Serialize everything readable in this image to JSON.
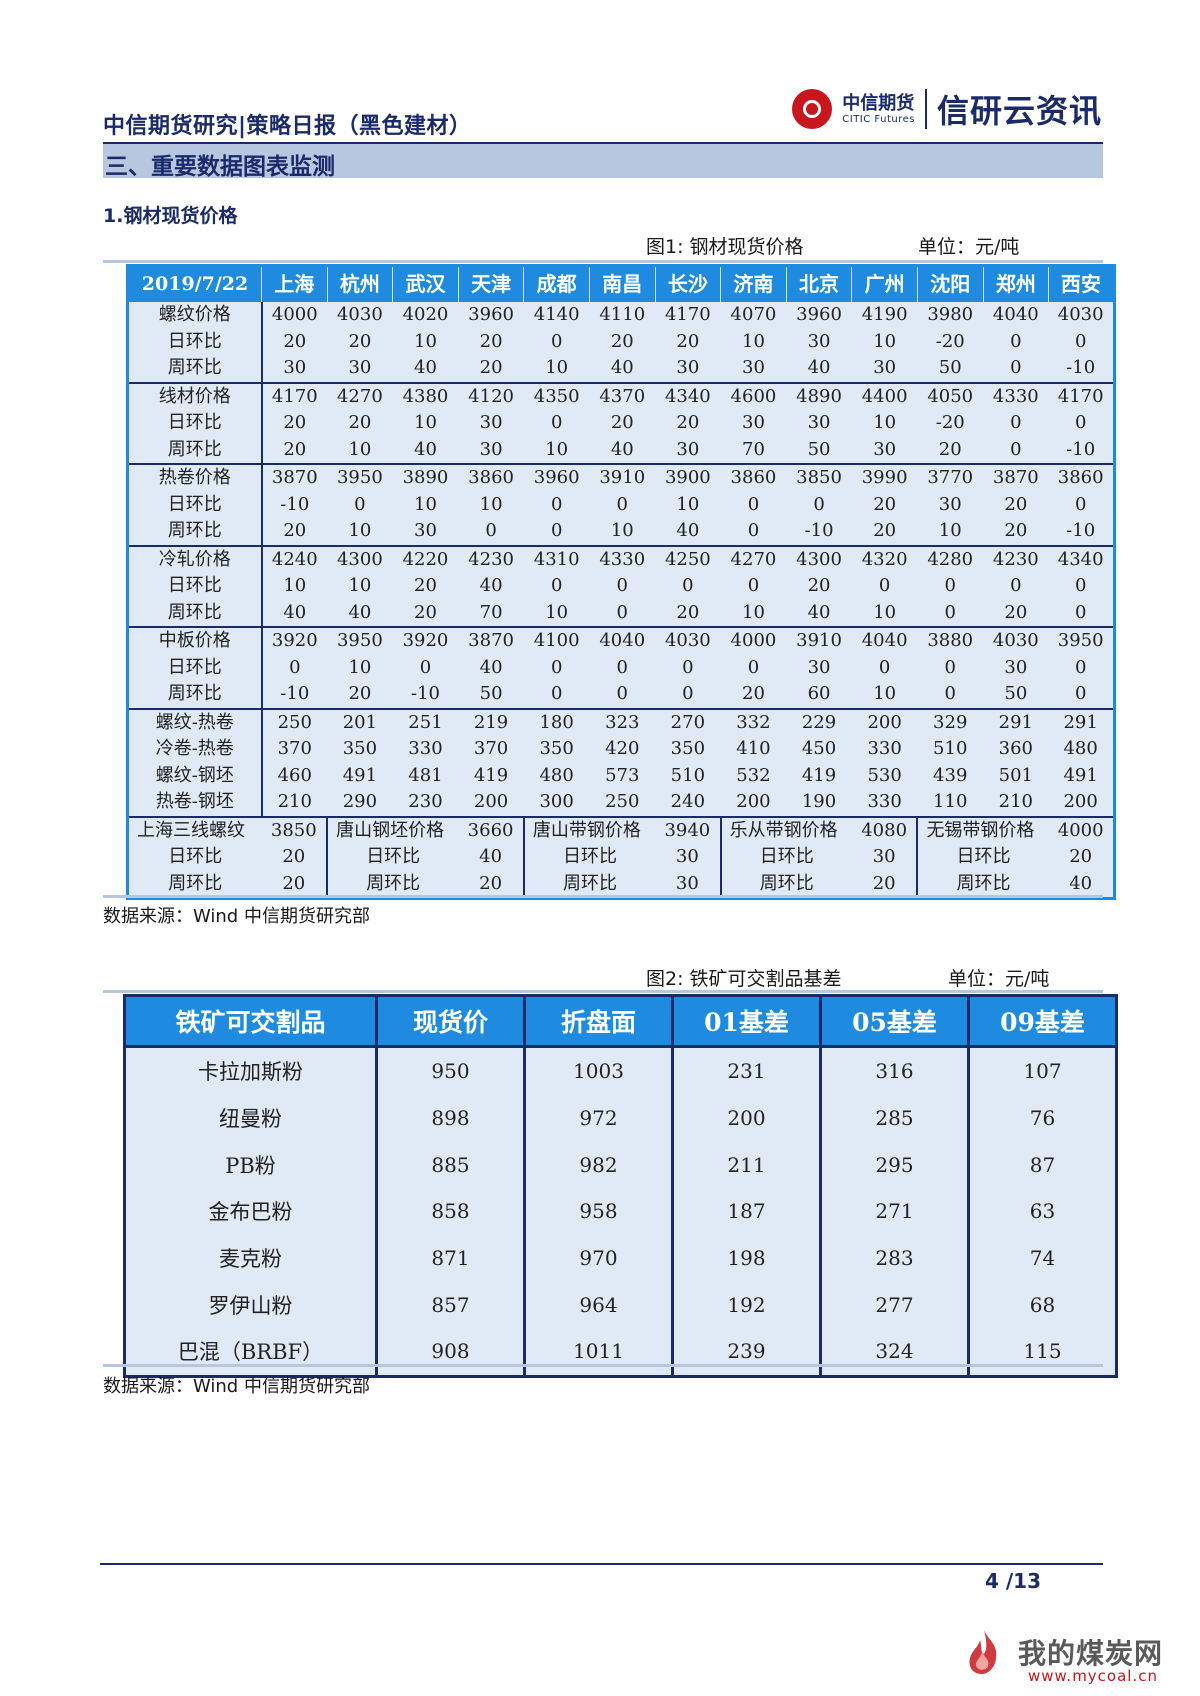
{
  "header": {
    "title": "中信期货研究|策略日报（黑色建材）",
    "brand_cn": "中信期货",
    "brand_en": "CITIC Futures",
    "brand_sub": "信研云资讯"
  },
  "section": {
    "title": "三、重要数据图表监测"
  },
  "subheading": "1.钢材现货价格",
  "fig1": {
    "caption": "图1: 钢材现货价格",
    "unit": "单位：元/吨",
    "date": "2019/7/22",
    "cities": [
      "上海",
      "杭州",
      "武汉",
      "天津",
      "成都",
      "南昌",
      "长沙",
      "济南",
      "北京",
      "广州",
      "沈阳",
      "郑州",
      "西安"
    ],
    "groups": [
      {
        "rows": [
          {
            "label": "螺纹价格",
            "values": [
              "4000",
              "4030",
              "4020",
              "3960",
              "4140",
              "4110",
              "4170",
              "4070",
              "3960",
              "4190",
              "3980",
              "4040",
              "4030"
            ]
          },
          {
            "label": "日环比",
            "values": [
              "20",
              "20",
              "10",
              "20",
              "0",
              "20",
              "20",
              "10",
              "30",
              "10",
              "-20",
              "0",
              "0"
            ]
          },
          {
            "label": "周环比",
            "values": [
              "30",
              "30",
              "40",
              "20",
              "10",
              "40",
              "30",
              "30",
              "40",
              "30",
              "50",
              "0",
              "-10"
            ]
          }
        ]
      },
      {
        "rows": [
          {
            "label": "线材价格",
            "values": [
              "4170",
              "4270",
              "4380",
              "4120",
              "4350",
              "4370",
              "4340",
              "4600",
              "4890",
              "4400",
              "4050",
              "4330",
              "4170"
            ]
          },
          {
            "label": "日环比",
            "values": [
              "20",
              "20",
              "10",
              "30",
              "0",
              "20",
              "20",
              "30",
              "30",
              "10",
              "-20",
              "0",
              "0"
            ]
          },
          {
            "label": "周环比",
            "values": [
              "20",
              "10",
              "40",
              "30",
              "10",
              "40",
              "30",
              "70",
              "50",
              "30",
              "20",
              "0",
              "-10"
            ]
          }
        ]
      },
      {
        "rows": [
          {
            "label": "热卷价格",
            "values": [
              "3870",
              "3950",
              "3890",
              "3860",
              "3960",
              "3910",
              "3900",
              "3860",
              "3850",
              "3990",
              "3770",
              "3870",
              "3860"
            ]
          },
          {
            "label": "日环比",
            "values": [
              "-10",
              "0",
              "10",
              "10",
              "0",
              "0",
              "10",
              "0",
              "0",
              "20",
              "30",
              "20",
              "0"
            ]
          },
          {
            "label": "周环比",
            "values": [
              "20",
              "10",
              "30",
              "0",
              "0",
              "10",
              "40",
              "0",
              "-10",
              "20",
              "10",
              "20",
              "-10"
            ]
          }
        ]
      },
      {
        "rows": [
          {
            "label": "冷轧价格",
            "values": [
              "4240",
              "4300",
              "4220",
              "4230",
              "4310",
              "4330",
              "4250",
              "4270",
              "4300",
              "4320",
              "4280",
              "4230",
              "4340"
            ]
          },
          {
            "label": "日环比",
            "values": [
              "10",
              "10",
              "20",
              "40",
              "0",
              "0",
              "0",
              "0",
              "20",
              "0",
              "0",
              "0",
              "0"
            ]
          },
          {
            "label": "周环比",
            "values": [
              "40",
              "40",
              "20",
              "70",
              "10",
              "0",
              "20",
              "10",
              "40",
              "10",
              "0",
              "20",
              "0"
            ]
          }
        ]
      },
      {
        "rows": [
          {
            "label": "中板价格",
            "values": [
              "3920",
              "3950",
              "3920",
              "3870",
              "4100",
              "4040",
              "4030",
              "4000",
              "3910",
              "4040",
              "3880",
              "4030",
              "3950"
            ]
          },
          {
            "label": "日环比",
            "values": [
              "0",
              "10",
              "0",
              "40",
              "0",
              "0",
              "0",
              "0",
              "30",
              "0",
              "0",
              "30",
              "0"
            ]
          },
          {
            "label": "周环比",
            "values": [
              "-10",
              "20",
              "-10",
              "50",
              "0",
              "0",
              "0",
              "20",
              "60",
              "10",
              "0",
              "50",
              "0"
            ]
          }
        ]
      },
      {
        "rows": [
          {
            "label": "螺纹-热卷",
            "values": [
              "250",
              "201",
              "251",
              "219",
              "180",
              "323",
              "270",
              "332",
              "229",
              "200",
              "329",
              "291",
              "291"
            ]
          },
          {
            "label": "冷卷-热卷",
            "values": [
              "370",
              "350",
              "330",
              "370",
              "350",
              "420",
              "350",
              "410",
              "450",
              "330",
              "510",
              "360",
              "480"
            ]
          },
          {
            "label": "螺纹-钢坯",
            "values": [
              "460",
              "491",
              "481",
              "419",
              "480",
              "573",
              "510",
              "532",
              "419",
              "530",
              "439",
              "501",
              "491"
            ]
          },
          {
            "label": "热卷-钢坯",
            "values": [
              "210",
              "290",
              "230",
              "200",
              "300",
              "250",
              "240",
              "200",
              "190",
              "330",
              "110",
              "210",
              "200"
            ]
          }
        ]
      }
    ],
    "misc": [
      {
        "name": "上海三线螺纹",
        "price": "3850",
        "day_label": "日环比",
        "day": "20",
        "week_label": "周环比",
        "week": "20"
      },
      {
        "name": "唐山钢坯价格",
        "price": "3660",
        "day_label": "日环比",
        "day": "40",
        "week_label": "周环比",
        "week": "20"
      },
      {
        "name": "唐山带钢价格",
        "price": "3940",
        "day_label": "日环比",
        "day": "30",
        "week_label": "周环比",
        "week": "30"
      },
      {
        "name": "乐从带钢价格",
        "price": "4080",
        "day_label": "日环比",
        "day": "30",
        "week_label": "周环比",
        "week": "20"
      },
      {
        "name": "无锡带钢价格",
        "price": "4000",
        "day_label": "日环比",
        "day": "20",
        "week_label": "周环比",
        "week": "40"
      }
    ],
    "source": "数据来源：Wind  中信期货研究部"
  },
  "fig2": {
    "caption": "图2: 铁矿可交割品基差",
    "unit": "单位：元/吨",
    "headers": [
      "铁矿可交割品",
      "现货价",
      "折盘面",
      "01基差",
      "05基差",
      "09基差"
    ],
    "rows": [
      [
        "卡拉加斯粉",
        "950",
        "1003",
        "231",
        "316",
        "107"
      ],
      [
        "纽曼粉",
        "898",
        "972",
        "200",
        "285",
        "76"
      ],
      [
        "PB粉",
        "885",
        "982",
        "211",
        "295",
        "87"
      ],
      [
        "金布巴粉",
        "858",
        "958",
        "187",
        "271",
        "63"
      ],
      [
        "麦克粉",
        "871",
        "970",
        "198",
        "283",
        "74"
      ],
      [
        "罗伊山粉",
        "857",
        "964",
        "192",
        "277",
        "68"
      ],
      [
        "巴混（BRBF）",
        "908",
        "1011",
        "239",
        "324",
        "115"
      ]
    ],
    "source": "数据来源：Wind  中信期货研究部"
  },
  "footer": {
    "page": "4  /13"
  },
  "watermark": {
    "text": "我的煤炭网",
    "url": "www.mycoal.cn"
  },
  "colors": {
    "header_blue": "#1e8ae0",
    "navy": "#1b2a6b",
    "cell_bg": "#dfeaf6",
    "section_bg": "#b7c7e0",
    "brand_red": "#c8161d"
  }
}
